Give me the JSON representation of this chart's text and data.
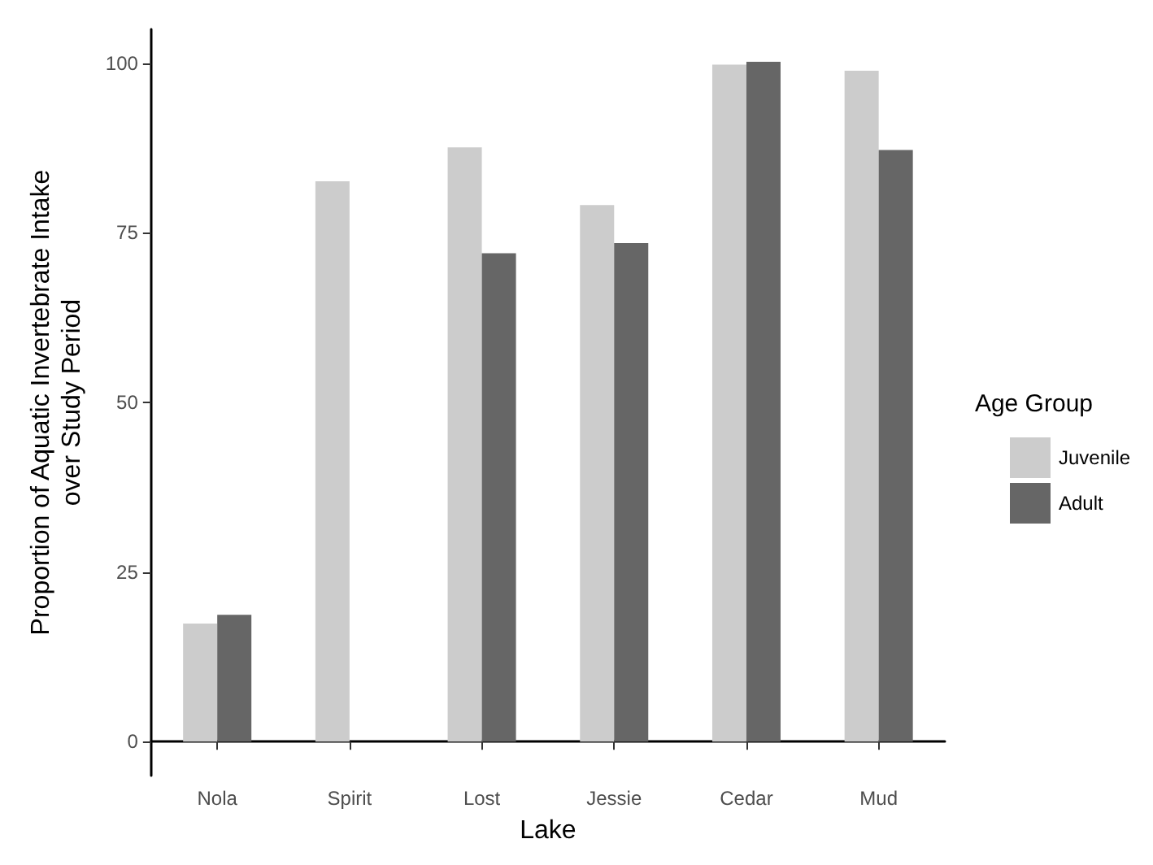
{
  "chart_data": {
    "type": "bar",
    "xlabel": "Lake",
    "ylabel": "Proportion of Aquatic Invertebrate Intake\nover Study Period",
    "legend_title": "Age Group",
    "categories": [
      "Nola",
      "Spirit",
      "Lost",
      "Jessie",
      "Cedar",
      "Mud"
    ],
    "series": [
      {
        "name": "Juvenile",
        "color": "#cccccc",
        "values": [
          17.4,
          82.6,
          87.6,
          79.1,
          99.8,
          98.9
        ]
      },
      {
        "name": "Adult",
        "color": "#666666",
        "values": [
          18.7,
          null,
          72.0,
          73.5,
          100.2,
          87.2
        ]
      }
    ],
    "ylim": [
      -5,
      105
    ],
    "yticks": [
      0,
      25,
      50,
      75,
      100
    ],
    "grid": false,
    "legend": "right"
  }
}
